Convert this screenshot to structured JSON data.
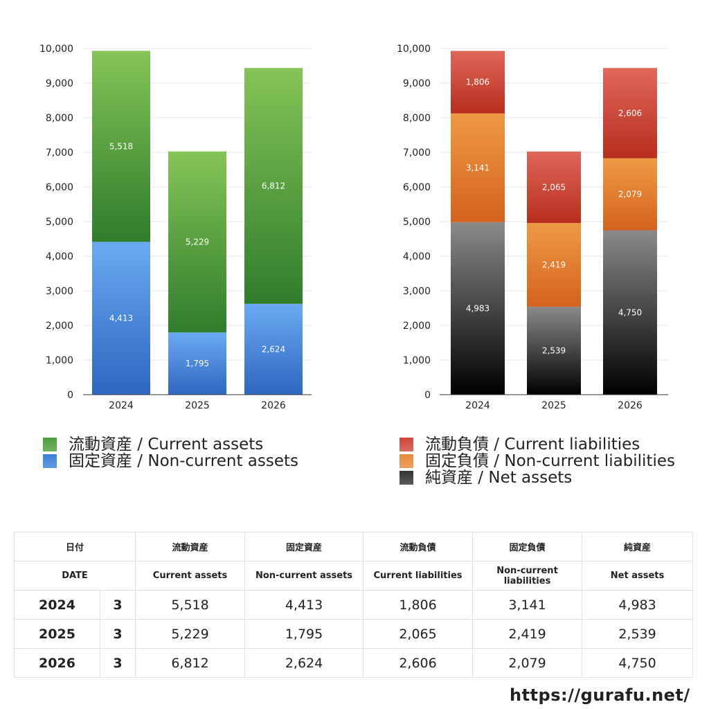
{
  "chart_data": [
    {
      "type": "bar",
      "stacked": true,
      "categories": [
        "2024",
        "2025",
        "2026"
      ],
      "ylim": [
        0,
        10000
      ],
      "yticks": [
        "0",
        "1,000",
        "2,000",
        "3,000",
        "4,000",
        "5,000",
        "6,000",
        "7,000",
        "8,000",
        "9,000",
        "10,000"
      ],
      "grid": true,
      "series": [
        {
          "name": "固定資産 / Non-current assets",
          "values": [
            4413,
            1795,
            2624
          ],
          "labels": [
            "4,413",
            "1,795",
            "2,624"
          ],
          "color_top": "#6aaaf2",
          "color_bottom": "#2e66c0"
        },
        {
          "name": "流動資産 / Current assets",
          "values": [
            5518,
            5229,
            6812
          ],
          "labels": [
            "5,518",
            "5,229",
            "6,812"
          ],
          "color_top": "#85c457",
          "color_bottom": "#2f7d2c"
        }
      ]
    },
    {
      "type": "bar",
      "stacked": true,
      "categories": [
        "2024",
        "2025",
        "2026"
      ],
      "ylim": [
        0,
        10000
      ],
      "yticks": [
        "0",
        "1,000",
        "2,000",
        "3,000",
        "4,000",
        "5,000",
        "6,000",
        "7,000",
        "8,000",
        "9,000",
        "10,000"
      ],
      "grid": true,
      "series": [
        {
          "name": "純資産 / Net assets",
          "values": [
            4983,
            2539,
            4750
          ],
          "labels": [
            "4,983",
            "2,539",
            "4,750"
          ],
          "color_top": "#8a8a8a",
          "color_bottom": "#000000"
        },
        {
          "name": "固定負債 / Non-current liabilities",
          "values": [
            3141,
            2419,
            2079
          ],
          "labels": [
            "3,141",
            "2,419",
            "2,079"
          ],
          "color_top": "#ef9a45",
          "color_bottom": "#d4621e"
        },
        {
          "name": "流動負債 / Current liabilities",
          "values": [
            1806,
            2065,
            2606
          ],
          "labels": [
            "1,806",
            "2,065",
            "2,606"
          ],
          "color_top": "#e0675a",
          "color_bottom": "#b72e1e"
        }
      ]
    }
  ],
  "legend_left": [
    {
      "label": "流動資産 / Current assets",
      "color": "#4f9e3d"
    },
    {
      "label": "固定資産 / Non-current assets",
      "color": "#3a7fd9"
    }
  ],
  "legend_right": [
    {
      "label": "流動負債 / Current liabilities",
      "color": "#d0463a"
    },
    {
      "label": "固定負債 / Non-current liabilities",
      "color": "#e8893b"
    },
    {
      "label": "純資産 / Net assets",
      "color": "#333333"
    }
  ],
  "table": {
    "header_jp": [
      "日付",
      "流動資産",
      "固定資産",
      "流動負債",
      "固定負債",
      "純資産"
    ],
    "header_en": [
      "DATE",
      "Current assets",
      "Non-current assets",
      "Current liabilities",
      "Non-current liabilities",
      "Net assets"
    ],
    "rows": [
      {
        "year": "2024",
        "month": "3",
        "values": [
          "5,518",
          "4,413",
          "1,806",
          "3,141",
          "4,983"
        ]
      },
      {
        "year": "2025",
        "month": "3",
        "values": [
          "5,229",
          "1,795",
          "2,065",
          "2,419",
          "2,539"
        ]
      },
      {
        "year": "2026",
        "month": "3",
        "values": [
          "6,812",
          "2,624",
          "2,606",
          "2,079",
          "4,750"
        ]
      }
    ]
  },
  "site_url": "https://gurafu.net/"
}
